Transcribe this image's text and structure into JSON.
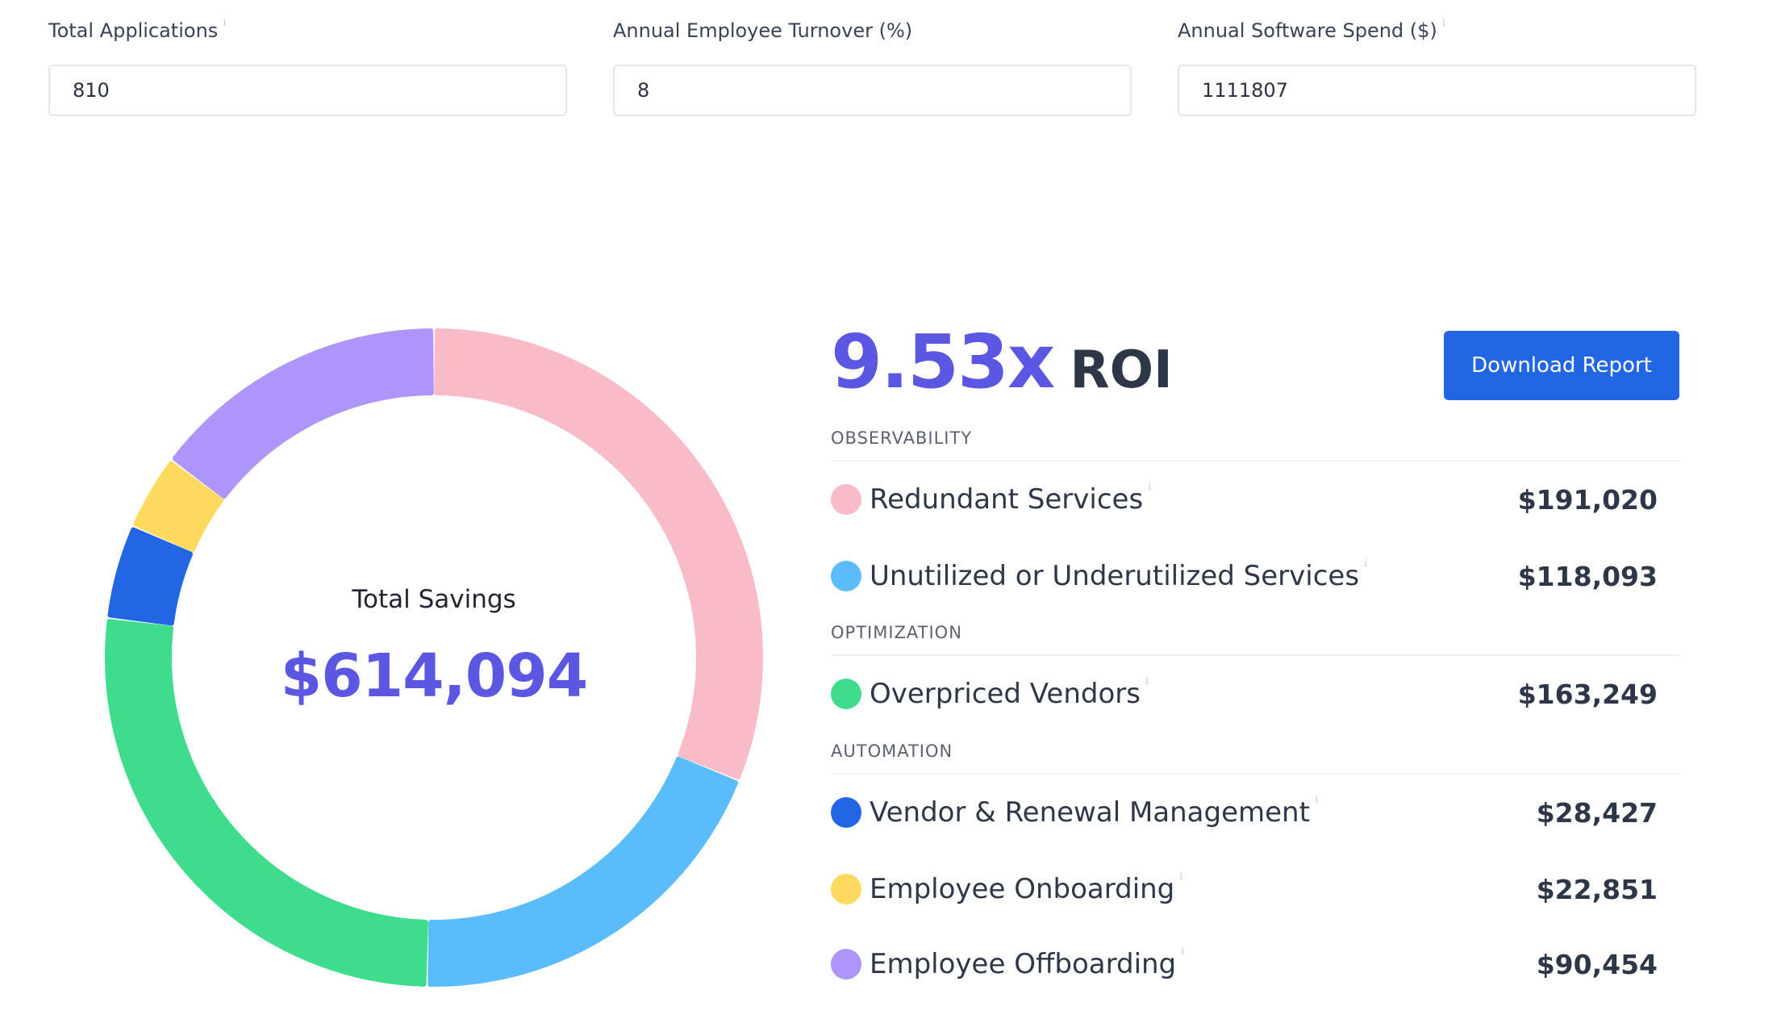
{
  "inputs": [
    {
      "label": "Total Applications",
      "info_icon": "i",
      "value": "810"
    },
    {
      "label": "Annual Employee Turnover (%)",
      "value": "8"
    },
    {
      "label": "Annual Software Spend ($)",
      "info_icon": "i",
      "value": "1111807"
    }
  ],
  "summary": {
    "caption": "Total Savings",
    "total": "$614,094",
    "roi_value": "9.53x",
    "roi_label": "ROI",
    "download_label": "Download Report"
  },
  "sections": {
    "observability": "OBSERVABILITY",
    "optimization": "OPTIMIZATION",
    "automation": "AUTOMATION"
  },
  "items": [
    {
      "label": "Redundant Services",
      "value": "$191,020",
      "color": "#f9bbc7",
      "info_icon": "i"
    },
    {
      "label": "Unutilized or Underutilized Services",
      "value": "$118,093",
      "color": "#5bbcfb",
      "info_icon": "i"
    },
    {
      "label": "Overpriced Vendors",
      "value": "$163,249",
      "color": "#3edc8c",
      "info_icon": "i"
    },
    {
      "label": "Vendor & Renewal Management",
      "value": "$28,427",
      "color": "#2266e3",
      "info_icon": "i"
    },
    {
      "label": "Employee Onboarding",
      "value": "$22,851",
      "color": "#fdda5e",
      "info_icon": "i"
    },
    {
      "label": "Employee Offboarding",
      "value": "$90,454",
      "color": "#ae95fb",
      "info_icon": "i"
    }
  ],
  "chart_data": {
    "type": "pie",
    "style": "donut",
    "categories": [
      "Redundant Services",
      "Unutilized or Underutilized Services",
      "Overpriced Vendors",
      "Vendor & Renewal Management",
      "Employee Onboarding",
      "Employee Offboarding"
    ],
    "values": [
      191020,
      118093,
      163249,
      28427,
      22851,
      90454
    ],
    "colors": [
      "#f9bbc7",
      "#5bbcfb",
      "#3edc8c",
      "#2266e3",
      "#fdda5e",
      "#ae95fb"
    ]
  }
}
